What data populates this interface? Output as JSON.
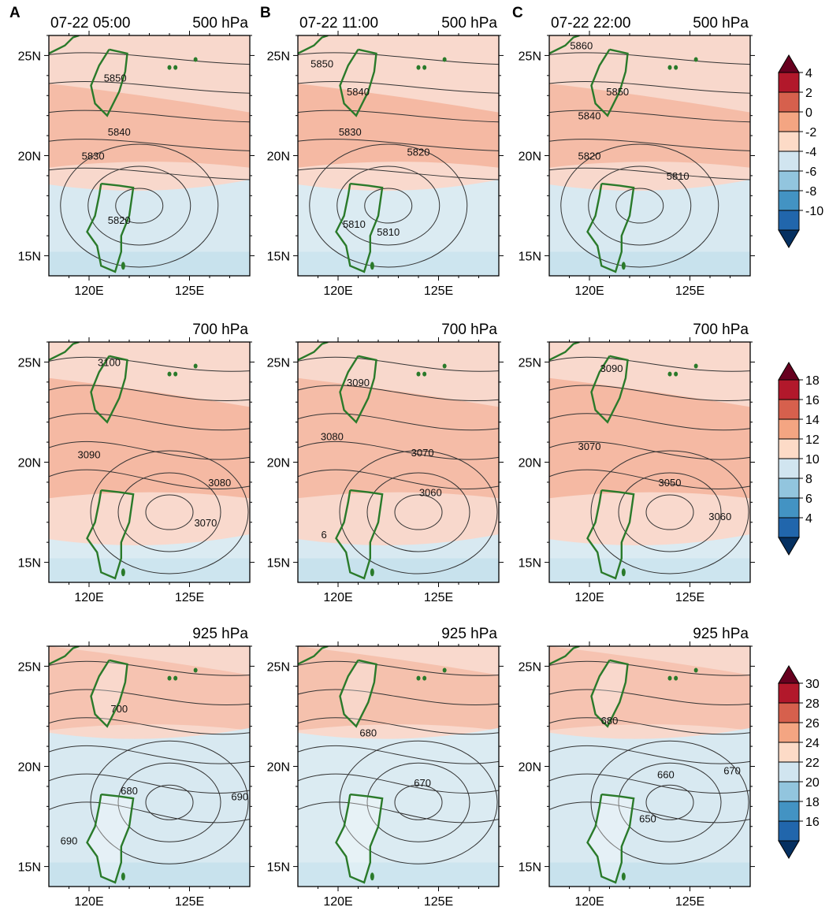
{
  "column_letters": [
    "A",
    "B",
    "C"
  ],
  "times": [
    "07-22 05:00",
    "07-22 11:00",
    "07-22 22:00"
  ],
  "levels": [
    "500 hPa",
    "700 hPa",
    "925 hPa"
  ],
  "axes": {
    "lon_ticks": [
      "120E",
      "125E"
    ],
    "lat_ticks": [
      "15N",
      "20N",
      "25N"
    ]
  },
  "colorbars": [
    {
      "level": "500 hPa",
      "labels": [
        "4",
        "2",
        "0",
        "-2",
        "-4",
        "-6",
        "-8",
        "-10"
      ],
      "colors": [
        "#67001f",
        "#b2182b",
        "#d6604d",
        "#f4a582",
        "#fddbc7",
        "#d1e5f0",
        "#92c5de",
        "#4393c3",
        "#2166ac",
        "#053061"
      ]
    },
    {
      "level": "700 hPa",
      "labels": [
        "18",
        "16",
        "14",
        "12",
        "10",
        "8",
        "6",
        "4"
      ],
      "colors": [
        "#67001f",
        "#b2182b",
        "#d6604d",
        "#f4a582",
        "#fddbc7",
        "#d1e5f0",
        "#92c5de",
        "#4393c3",
        "#2166ac",
        "#053061"
      ]
    },
    {
      "level": "925 hPa",
      "labels": [
        "30",
        "28",
        "26",
        "24",
        "22",
        "20",
        "18",
        "16"
      ],
      "colors": [
        "#67001f",
        "#b2182b",
        "#d6604d",
        "#f4a582",
        "#fddbc7",
        "#d1e5f0",
        "#92c5de",
        "#4393c3",
        "#2166ac",
        "#053061"
      ]
    }
  ],
  "contour_labels": [
    [
      "5850",
      "5840",
      "5830",
      "5820"
    ],
    [
      "5850",
      "5840",
      "5830",
      "5820",
      "5810",
      "5810"
    ],
    [
      "5860",
      "5850",
      "5840",
      "5820",
      "5810"
    ],
    [
      "3100",
      "3090",
      "3080",
      "3070"
    ],
    [
      "3090",
      "3080",
      "3070",
      "3060",
      "6"
    ],
    [
      "3090",
      "3070",
      "3050",
      "3060"
    ],
    [
      "700",
      "680",
      "690",
      "690"
    ],
    [
      "680",
      "670"
    ],
    [
      "680",
      "660",
      "670",
      "650"
    ]
  ]
}
